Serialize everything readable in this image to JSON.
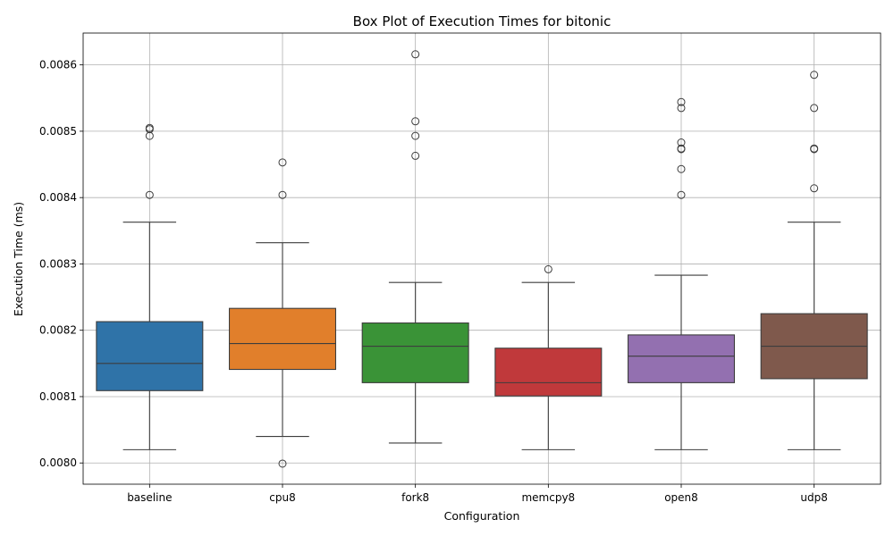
{
  "chart_data": {
    "type": "box",
    "title": "Box Plot of Execution Times for bitonic",
    "xlabel": "Configuration",
    "ylabel": "Execution Time (ms)",
    "ylim": [
      0.007968,
      0.008648
    ],
    "yticks": [
      "0.0080",
      "0.0081",
      "0.0082",
      "0.0083",
      "0.0084",
      "0.0085",
      "0.0086"
    ],
    "grid": true,
    "categories": [
      "baseline",
      "cpu8",
      "fork8",
      "memcpy8",
      "open8",
      "udp8"
    ],
    "boxes": [
      {
        "name": "baseline",
        "color": "#2f73a8",
        "whisker_low": 0.00802,
        "q1": 0.008109,
        "median": 0.00815,
        "q3": 0.008213,
        "whisker_high": 0.008363,
        "outliers": [
          0.008404,
          0.008493,
          0.008503,
          0.008505
        ]
      },
      {
        "name": "cpu8",
        "color": "#e17f2b",
        "whisker_low": 0.00804,
        "q1": 0.008141,
        "median": 0.00818,
        "q3": 0.008233,
        "whisker_high": 0.008332,
        "outliers": [
          0.007999,
          0.008404,
          0.008453
        ]
      },
      {
        "name": "fork8",
        "color": "#3a9337",
        "whisker_low": 0.00803,
        "q1": 0.008121,
        "median": 0.008176,
        "q3": 0.008211,
        "whisker_high": 0.008272,
        "outliers": [
          0.008463,
          0.008493,
          0.008515,
          0.008616
        ]
      },
      {
        "name": "memcpy8",
        "color": "#c0393b",
        "whisker_low": 0.00802,
        "q1": 0.008101,
        "median": 0.008121,
        "q3": 0.008173,
        "whisker_high": 0.008272,
        "outliers": [
          0.008292
        ]
      },
      {
        "name": "open8",
        "color": "#9370b0",
        "whisker_low": 0.00802,
        "q1": 0.008121,
        "median": 0.008161,
        "q3": 0.008193,
        "whisker_high": 0.008283,
        "outliers": [
          0.008404,
          0.008443,
          0.008473,
          0.008474,
          0.008483,
          0.008535,
          0.008544
        ]
      },
      {
        "name": "udp8",
        "color": "#7f594c",
        "whisker_low": 0.00802,
        "q1": 0.008127,
        "median": 0.008176,
        "q3": 0.008225,
        "whisker_high": 0.008363,
        "outliers": [
          0.008414,
          0.008473,
          0.008474,
          0.008535,
          0.008585
        ]
      }
    ]
  }
}
